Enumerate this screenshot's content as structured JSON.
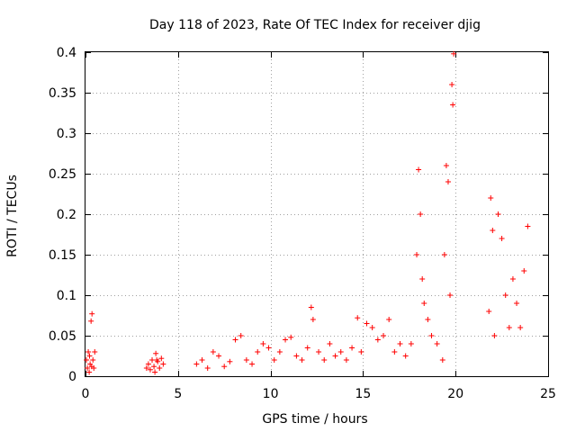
{
  "chart_data": {
    "type": "scatter",
    "title": "Day 118 of 2023, Rate Of TEC Index for receiver djig",
    "xlabel": "GPS time / hours",
    "ylabel": "ROTI / TECUs",
    "xlim": [
      0,
      25
    ],
    "ylim": [
      0,
      0.4
    ],
    "x_ticks": [
      0,
      5,
      10,
      15,
      20,
      25
    ],
    "x_tick_labels": [
      "0",
      "5",
      "10",
      "15",
      "20",
      "25"
    ],
    "y_ticks": [
      0,
      0.05,
      0.1,
      0.15,
      0.2,
      0.25,
      0.3,
      0.35,
      0.4
    ],
    "y_tick_labels": [
      "0",
      "0.05",
      "0.1",
      "0.15",
      "0.2",
      "0.25",
      "0.3",
      "0.35",
      "0.4"
    ],
    "grid": true,
    "marker": "+",
    "marker_color": "#ff0000",
    "series": [
      {
        "name": "ROTI",
        "x": [
          0.05,
          0.1,
          0.15,
          0.2,
          0.25,
          0.3,
          0.35,
          0.4,
          0.45,
          0.5,
          0.22,
          0.33,
          3.3,
          3.4,
          3.5,
          3.6,
          3.7,
          3.8,
          3.9,
          4.0,
          4.1,
          4.2,
          3.75,
          3.85,
          6.0,
          6.3,
          6.6,
          6.9,
          7.2,
          7.5,
          7.8,
          8.1,
          8.4,
          8.7,
          9.0,
          9.3,
          9.6,
          9.9,
          10.2,
          10.5,
          10.8,
          11.1,
          11.4,
          11.7,
          12.0,
          12.2,
          12.3,
          12.6,
          12.9,
          13.2,
          13.5,
          13.8,
          14.1,
          14.4,
          14.7,
          14.9,
          15.2,
          15.5,
          15.8,
          16.1,
          16.4,
          16.7,
          17.0,
          17.3,
          17.6,
          17.9,
          18.0,
          18.1,
          18.2,
          18.3,
          18.5,
          18.7,
          19.0,
          19.3,
          19.4,
          19.5,
          19.6,
          19.7,
          19.8,
          19.85,
          19.9,
          21.8,
          21.9,
          22.0,
          22.1,
          22.3,
          22.5,
          22.7,
          22.9,
          23.1,
          23.3,
          23.5,
          23.7,
          23.9
        ],
        "y": [
          0.02,
          0.01,
          0.03,
          0.005,
          0.015,
          0.068,
          0.077,
          0.02,
          0.01,
          0.03,
          0.025,
          0.012,
          0.01,
          0.015,
          0.008,
          0.02,
          0.012,
          0.028,
          0.018,
          0.01,
          0.022,
          0.015,
          0.005,
          0.02,
          0.015,
          0.02,
          0.01,
          0.03,
          0.025,
          0.012,
          0.018,
          0.045,
          0.05,
          0.02,
          0.015,
          0.03,
          0.04,
          0.035,
          0.02,
          0.03,
          0.045,
          0.048,
          0.025,
          0.02,
          0.035,
          0.085,
          0.07,
          0.03,
          0.02,
          0.04,
          0.025,
          0.03,
          0.02,
          0.035,
          0.072,
          0.03,
          0.065,
          0.06,
          0.045,
          0.05,
          0.07,
          0.03,
          0.04,
          0.025,
          0.04,
          0.15,
          0.255,
          0.2,
          0.12,
          0.09,
          0.07,
          0.05,
          0.04,
          0.02,
          0.15,
          0.26,
          0.24,
          0.1,
          0.36,
          0.335,
          0.398,
          0.08,
          0.22,
          0.18,
          0.05,
          0.2,
          0.17,
          0.1,
          0.06,
          0.12,
          0.09,
          0.06,
          0.13,
          0.185
        ]
      }
    ]
  }
}
